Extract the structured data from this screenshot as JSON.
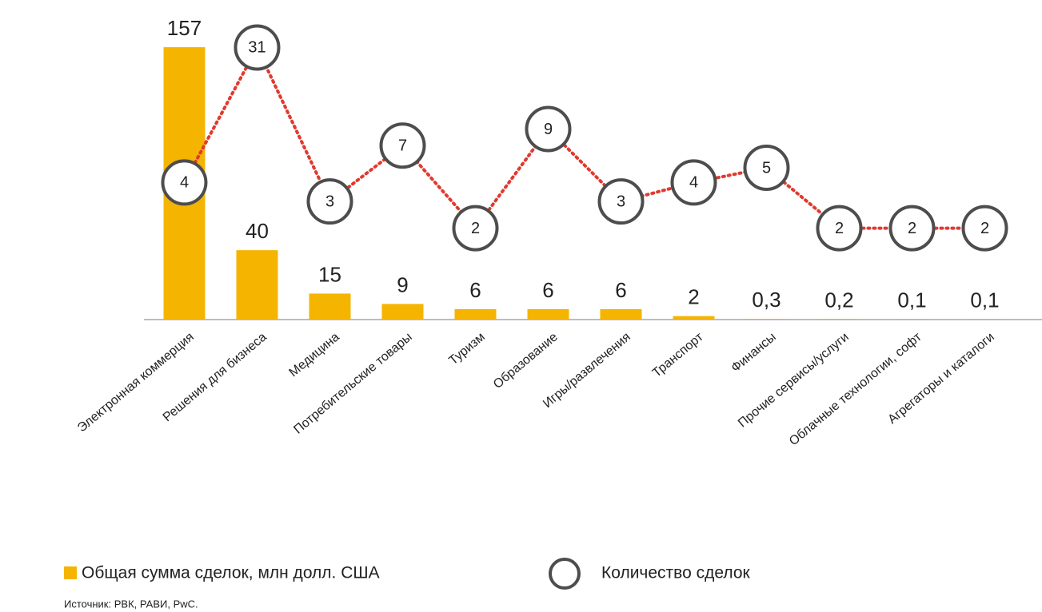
{
  "chart_data": {
    "type": "combo",
    "categories": [
      "Электронная коммерция",
      "Решения для бизнеса",
      "Медицина",
      "Потребительские товары",
      "Туризм",
      "Образование",
      "Игры/развлечения",
      "Транспорт",
      "Финансы",
      "Прочие сервисы/услуги",
      "Облачные технологии, софт",
      "Агрегаторы и каталоги"
    ],
    "series": [
      {
        "name": "Общая сумма сделок, млн долл. США",
        "type": "bar",
        "color": "#f5b400",
        "values": [
          157,
          40,
          15,
          9,
          6,
          6,
          6,
          2,
          0.3,
          0.2,
          0.1,
          0.1
        ],
        "value_labels": [
          "157",
          "40",
          "15",
          "9",
          "6",
          "6",
          "6",
          "2",
          "0,3",
          "0,2",
          "0,1",
          "0,1"
        ]
      },
      {
        "name": "Количество сделок",
        "type": "line",
        "axis": "y2",
        "color": "#e03a2f",
        "marker_color": "#4d4d4d",
        "values": [
          4,
          31,
          3,
          7,
          2,
          9,
          3,
          4,
          5,
          2,
          2,
          2
        ]
      }
    ],
    "ylim": [
      0,
      175
    ],
    "y2lim": [
      0.5,
      50
    ],
    "y2log": true,
    "grid": false,
    "source": "Источник: РВК, РАВИ, PwC."
  }
}
